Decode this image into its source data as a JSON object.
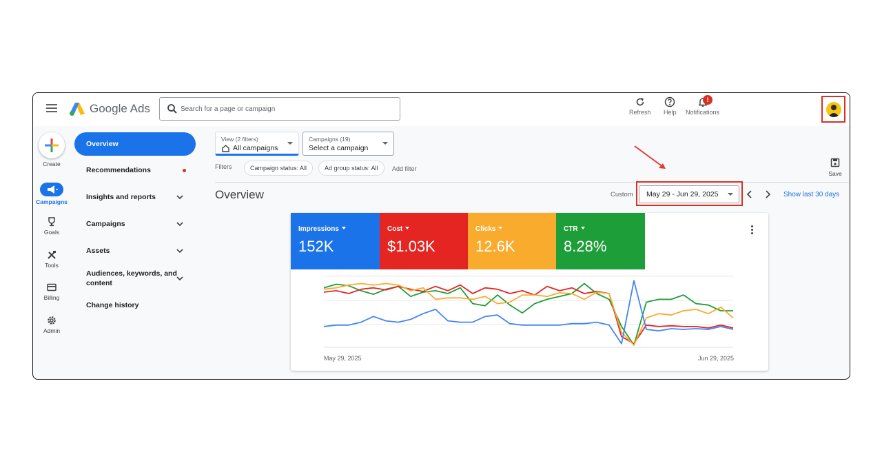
{
  "header": {
    "product_name": "Google Ads",
    "search_placeholder": "Search for a page or campaign",
    "actions": {
      "refresh": "Refresh",
      "help": "Help",
      "notifications": "Notifications",
      "notification_count": "!"
    }
  },
  "rail": {
    "create": "Create",
    "campaigns": "Campaigns",
    "goals": "Goals",
    "tools": "Tools",
    "billing": "Billing",
    "admin": "Admin"
  },
  "nav": {
    "overview": "Overview",
    "recommendations": "Recommendations",
    "insights": "Insights and reports",
    "campaigns": "Campaigns",
    "assets": "Assets",
    "audiences_line1": "Audiences, keywords, and",
    "audiences_line2": "content",
    "change_history": "Change history"
  },
  "filters": {
    "view_label": "View (2 filters)",
    "view_value": "All campaigns",
    "campaigns_label": "Campaigns (19)",
    "campaigns_value": "Select a campaign",
    "filters_label": "Filters",
    "chip_campaign_status": "Campaign status: All",
    "chip_adgroup_status": "Ad group status: All",
    "add_filter": "Add filter",
    "save": "Save"
  },
  "overview": {
    "title": "Overview",
    "custom_label": "Custom",
    "date_range": "May 29 - Jun 29, 2025",
    "show_last": "Show last 30 days"
  },
  "metrics": [
    {
      "label": "Impressions",
      "value": "152K",
      "color": "#1a73e8"
    },
    {
      "label": "Cost",
      "value": "$1.03K",
      "color": "#e52521"
    },
    {
      "label": "Clicks",
      "value": "12.6K",
      "color": "#f9ab2d"
    },
    {
      "label": "CTR",
      "value": "8.28%",
      "color": "#1e9e38"
    }
  ],
  "chart_data": {
    "type": "line",
    "x_start": "May 29, 2025",
    "x_end": "Jun 29, 2025",
    "series": [
      {
        "color": "#1e9e38",
        "values": [
          0.82,
          0.87,
          0.85,
          0.78,
          0.73,
          0.8,
          0.84,
          0.7,
          0.76,
          0.78,
          0.74,
          0.82,
          0.6,
          0.57,
          0.72,
          0.58,
          0.47,
          0.6,
          0.66,
          0.7,
          0.74,
          0.88,
          0.74,
          0.66,
          0.28,
          0.02,
          0.62,
          0.66,
          0.66,
          0.72,
          0.6,
          0.58,
          0.5,
          0.5
        ]
      },
      {
        "color": "#e52521",
        "values": [
          0.76,
          0.78,
          0.74,
          0.8,
          0.82,
          0.79,
          0.84,
          0.8,
          0.77,
          0.84,
          0.78,
          0.86,
          0.74,
          0.82,
          0.8,
          0.74,
          0.78,
          0.72,
          0.84,
          0.78,
          0.82,
          0.74,
          0.77,
          0.74,
          0.14,
          0.04,
          0.3,
          0.28,
          0.29,
          0.28,
          0.28,
          0.26,
          0.3,
          0.26
        ]
      },
      {
        "color": "#f9ab2d",
        "values": [
          0.8,
          0.82,
          0.86,
          0.88,
          0.86,
          0.88,
          0.86,
          0.78,
          0.82,
          0.66,
          0.68,
          0.68,
          0.66,
          0.7,
          0.6,
          0.62,
          0.72,
          0.72,
          0.7,
          0.75,
          0.74,
          0.66,
          0.76,
          0.74,
          0.2,
          0.02,
          0.4,
          0.46,
          0.44,
          0.5,
          0.52,
          0.46,
          0.55,
          0.4
        ]
      },
      {
        "color": "#4285f4",
        "values": [
          0.28,
          0.3,
          0.3,
          0.34,
          0.42,
          0.36,
          0.34,
          0.38,
          0.46,
          0.52,
          0.36,
          0.34,
          0.34,
          0.42,
          0.44,
          0.32,
          0.3,
          0.3,
          0.3,
          0.3,
          0.32,
          0.32,
          0.34,
          0.3,
          0.04,
          0.92,
          0.24,
          0.22,
          0.25,
          0.24,
          0.25,
          0.24,
          0.28,
          0.24
        ]
      }
    ]
  }
}
